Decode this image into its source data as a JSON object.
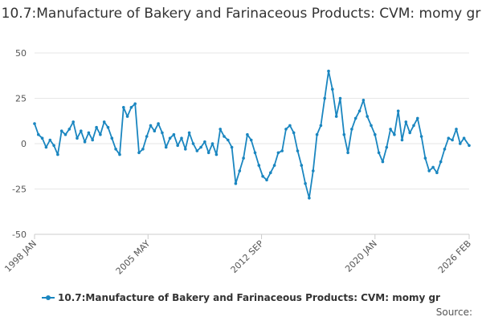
{
  "colors": {
    "series": "#1a86c0",
    "grid": "#e6e6e6",
    "axis": "#cccccc"
  },
  "chart_data": {
    "type": "line",
    "title": "10.7:Manufacture of Bakery and Farinaceous Products: CVM: momy gr",
    "xlabel": "",
    "ylabel": "",
    "ylim": [
      -50,
      50
    ],
    "yticks": [
      50,
      25,
      0,
      -25,
      -50
    ],
    "xlim": [
      1998.0,
      2026.083
    ],
    "xticks": [
      {
        "label": "1998 JAN",
        "x": 1998.0
      },
      {
        "label": "2005 MAY",
        "x": 2005.333
      },
      {
        "label": "2012 SEP",
        "x": 2012.667
      },
      {
        "label": "2020 JAN",
        "x": 2020.0
      },
      {
        "label": "2026 FEB",
        "x": 2026.083
      }
    ],
    "legend": "bottom-center",
    "grid": true,
    "series": [
      {
        "name": "10.7:Manufacture of Bakery and Farinaceous Products: CVM: momy gr",
        "points": [
          [
            1998.0,
            11
          ],
          [
            1998.25,
            5
          ],
          [
            1998.5,
            3
          ],
          [
            1998.75,
            -2
          ],
          [
            1999.0,
            2
          ],
          [
            1999.25,
            -1
          ],
          [
            1999.5,
            -6
          ],
          [
            1999.75,
            7
          ],
          [
            2000.0,
            5
          ],
          [
            2000.25,
            8
          ],
          [
            2000.5,
            12
          ],
          [
            2000.75,
            3
          ],
          [
            2001.0,
            7
          ],
          [
            2001.25,
            1
          ],
          [
            2001.5,
            6
          ],
          [
            2001.75,
            2
          ],
          [
            2002.0,
            9
          ],
          [
            2002.25,
            5
          ],
          [
            2002.5,
            12
          ],
          [
            2002.75,
            9
          ],
          [
            2003.0,
            3
          ],
          [
            2003.25,
            -3
          ],
          [
            2003.5,
            -6
          ],
          [
            2003.75,
            20
          ],
          [
            2004.0,
            15
          ],
          [
            2004.25,
            20
          ],
          [
            2004.5,
            22
          ],
          [
            2004.75,
            -5
          ],
          [
            2005.0,
            -3
          ],
          [
            2005.25,
            4
          ],
          [
            2005.5,
            10
          ],
          [
            2005.75,
            7
          ],
          [
            2006.0,
            11
          ],
          [
            2006.25,
            6
          ],
          [
            2006.5,
            -2
          ],
          [
            2006.75,
            3
          ],
          [
            2007.0,
            5
          ],
          [
            2007.25,
            -1
          ],
          [
            2007.5,
            3
          ],
          [
            2007.75,
            -3
          ],
          [
            2008.0,
            6
          ],
          [
            2008.25,
            0
          ],
          [
            2008.5,
            -4
          ],
          [
            2008.75,
            -2
          ],
          [
            2009.0,
            1
          ],
          [
            2009.25,
            -5
          ],
          [
            2009.5,
            0
          ],
          [
            2009.75,
            -6
          ],
          [
            2010.0,
            8
          ],
          [
            2010.25,
            4
          ],
          [
            2010.5,
            2
          ],
          [
            2010.75,
            -2
          ],
          [
            2011.0,
            -22
          ],
          [
            2011.25,
            -15
          ],
          [
            2011.5,
            -8
          ],
          [
            2011.75,
            5
          ],
          [
            2012.0,
            2
          ],
          [
            2012.25,
            -5
          ],
          [
            2012.5,
            -12
          ],
          [
            2012.75,
            -18
          ],
          [
            2013.0,
            -20
          ],
          [
            2013.25,
            -16
          ],
          [
            2013.5,
            -12
          ],
          [
            2013.75,
            -5
          ],
          [
            2014.0,
            -4
          ],
          [
            2014.25,
            8
          ],
          [
            2014.5,
            10
          ],
          [
            2014.75,
            6
          ],
          [
            2015.0,
            -4
          ],
          [
            2015.25,
            -12
          ],
          [
            2015.5,
            -22
          ],
          [
            2015.75,
            -30
          ],
          [
            2016.0,
            -15
          ],
          [
            2016.25,
            5
          ],
          [
            2016.5,
            10
          ],
          [
            2016.75,
            25
          ],
          [
            2017.0,
            40
          ],
          [
            2017.25,
            30
          ],
          [
            2017.5,
            15
          ],
          [
            2017.75,
            25
          ],
          [
            2018.0,
            5
          ],
          [
            2018.25,
            -5
          ],
          [
            2018.5,
            8
          ],
          [
            2018.75,
            14
          ],
          [
            2019.0,
            18
          ],
          [
            2019.25,
            24
          ],
          [
            2019.5,
            15
          ],
          [
            2019.75,
            10
          ],
          [
            2020.0,
            5
          ],
          [
            2020.25,
            -5
          ],
          [
            2020.5,
            -10
          ],
          [
            2020.75,
            -2
          ],
          [
            2021.0,
            8
          ],
          [
            2021.25,
            5
          ],
          [
            2021.5,
            18
          ],
          [
            2021.75,
            2
          ],
          [
            2022.0,
            12
          ],
          [
            2022.25,
            6
          ],
          [
            2022.5,
            10
          ],
          [
            2022.75,
            14
          ],
          [
            2023.0,
            4
          ],
          [
            2023.25,
            -8
          ],
          [
            2023.5,
            -15
          ],
          [
            2023.75,
            -13
          ],
          [
            2024.0,
            -16
          ],
          [
            2024.25,
            -10
          ],
          [
            2024.5,
            -3
          ],
          [
            2024.75,
            3
          ],
          [
            2025.0,
            2
          ],
          [
            2025.25,
            8
          ],
          [
            2025.5,
            0
          ],
          [
            2025.75,
            3
          ],
          [
            2026.083,
            -1
          ]
        ]
      }
    ]
  },
  "legend": {
    "label": "10.7:Manufacture of Bakery and Farinaceous Products: CVM: momy gr"
  },
  "footer": {
    "source_label": "Source:"
  }
}
